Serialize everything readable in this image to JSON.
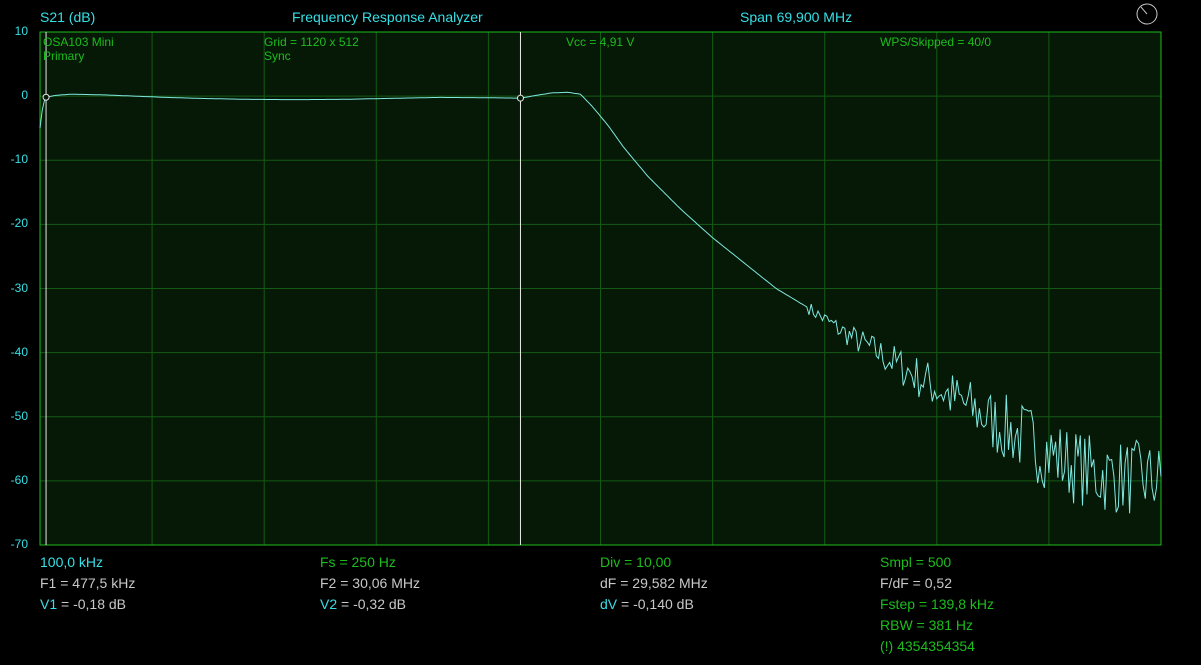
{
  "header": {
    "ylabel": "S21 (dB)",
    "title": "Frequency Response Analyzer",
    "span": "Span 69,900 MHz"
  },
  "overlay": {
    "device": "OSA103 Mini",
    "mode": "Primary",
    "grid": "Grid = 1120 x 512",
    "sync": "Sync",
    "vcc": "Vcc = 4,91 V",
    "wps": "WPS/Skipped  = 40/0"
  },
  "info": {
    "col1": {
      "start": "100,0 kHz",
      "f1": "F1 = 477,5 kHz",
      "v1_label": "V1",
      "v1_value": " = -0,18 dB"
    },
    "col2": {
      "fs": "Fs = 250 Hz",
      "f2": "F2 = 30,06 MHz",
      "v2_label": "V2",
      "v2_value": " = -0,32 dB"
    },
    "col3": {
      "div": "Div = 10,00",
      "df": "dF = 29,582 MHz",
      "dv_label": "dV",
      "dv_value": " = -0,140 dB"
    },
    "col4": {
      "smpl": "Smpl = 500",
      "fdf": "F/dF = 0,52",
      "fstep": "Fstep = 139,8 kHz",
      "rbw": "RBW = 381 Hz",
      "warn": "(!) 4354354354"
    }
  },
  "colors": {
    "background": "#000000",
    "plot_bg": "#061906",
    "grid": "#145a14",
    "frame": "#1cbd1c",
    "trace": "#7fe8e0",
    "text_cyan": "#35e0e6",
    "text_green": "#1cbd1c",
    "text_grey": "#c8c8c8"
  },
  "chart_data": {
    "type": "line",
    "title": "Frequency Response Analyzer",
    "ylabel": "S21 (dB)",
    "xlabel": "",
    "x_unit": "MHz",
    "xlim": [
      0.1,
      70.0
    ],
    "ylim": [
      -70,
      10
    ],
    "yticks": [
      "10",
      "0",
      "-10",
      "-20",
      "-30",
      "-40",
      "-50",
      "-60",
      "-70"
    ],
    "x_divisions": 10,
    "y_divisions": 8,
    "grid": true,
    "markers": [
      {
        "name": "F1",
        "x": 0.4775,
        "y": -0.18
      },
      {
        "name": "F2",
        "x": 30.06,
        "y": -0.32
      }
    ],
    "series": [
      {
        "points": [
          [
            0.1,
            -5.0
          ],
          [
            0.3,
            -1.0
          ],
          [
            0.4775,
            -0.18
          ],
          [
            1.0,
            0.1
          ],
          [
            2.0,
            0.3
          ],
          [
            4.0,
            0.2
          ],
          [
            6.0,
            0.0
          ],
          [
            8.0,
            -0.2
          ],
          [
            10.0,
            -0.35
          ],
          [
            13.0,
            -0.5
          ],
          [
            16.0,
            -0.55
          ],
          [
            19.0,
            -0.5
          ],
          [
            22.0,
            -0.35
          ],
          [
            25.0,
            -0.2
          ],
          [
            28.0,
            -0.25
          ],
          [
            30.06,
            -0.32
          ],
          [
            31.0,
            0.1
          ],
          [
            32.0,
            0.5
          ],
          [
            33.0,
            0.6
          ],
          [
            33.8,
            0.3
          ],
          [
            34.5,
            -1.5
          ],
          [
            35.5,
            -4.5
          ],
          [
            36.5,
            -8.0
          ],
          [
            38.0,
            -12.5
          ],
          [
            40.0,
            -17.5
          ],
          [
            42.0,
            -22.0
          ],
          [
            44.0,
            -26.0
          ],
          [
            46.0,
            -30.0
          ],
          [
            48.0,
            -33.0
          ],
          [
            50.0,
            -36.5
          ],
          [
            52.0,
            -39.5
          ],
          [
            54.0,
            -42.5
          ],
          [
            56.0,
            -45.5
          ],
          [
            58.0,
            -48.5
          ],
          [
            60.0,
            -51.5
          ],
          [
            62.0,
            -54.0
          ],
          [
            64.0,
            -57.0
          ],
          [
            66.0,
            -59.0
          ],
          [
            68.0,
            -59.5
          ],
          [
            70.0,
            -60.0
          ]
        ]
      }
    ]
  }
}
